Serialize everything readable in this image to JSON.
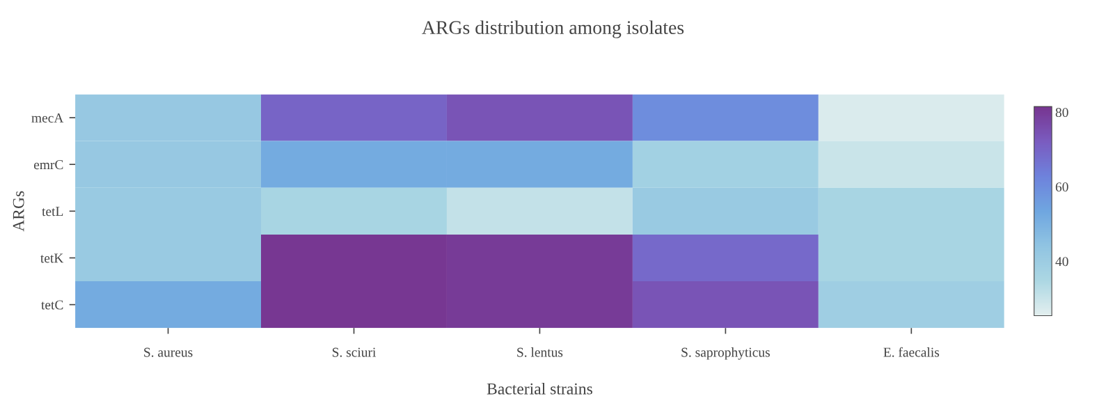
{
  "chart_data": {
    "type": "heatmap",
    "title": "ARGs distribution among isolates",
    "xlabel": "Bacterial strains",
    "ylabel": "ARGs",
    "categories": [
      "S. aureus",
      "S. sciuri",
      "S. lentus",
      "S. saprophyticus",
      "E. faecalis"
    ],
    "y_categories": [
      "mecA",
      "emrC",
      "tetL",
      "tetK",
      "tetC"
    ],
    "cells": [
      [
        42,
        70,
        74,
        60,
        27
      ],
      [
        42,
        52,
        52,
        38,
        30
      ],
      [
        41,
        36,
        31,
        41,
        36
      ],
      [
        41,
        81,
        80,
        69,
        36
      ],
      [
        52,
        81,
        80,
        74,
        39
      ]
    ],
    "clim": [
      25.4,
      81.5
    ],
    "cticks": [
      40,
      60,
      80
    ],
    "colors": [
      "#e3efef",
      "#acd7e3",
      "#90c4e2",
      "#6fa6e0",
      "#6e82dc",
      "#7a5cc0",
      "#773590"
    ],
    "grid": false
  }
}
